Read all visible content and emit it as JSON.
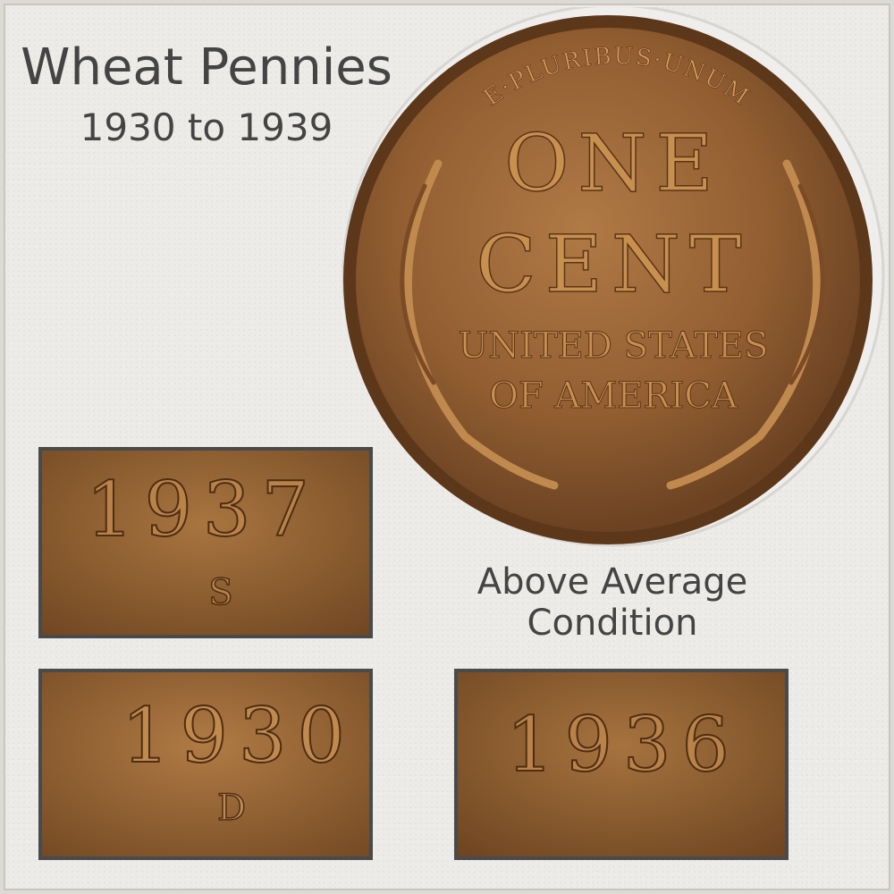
{
  "title": "Wheat Pennies",
  "subtitle": "1930 to 1939",
  "caption": {
    "line1": "Above Average",
    "line2": "Condition"
  },
  "coin": {
    "motto": "E·PLURIBUS·UNUM",
    "line1": "ONE",
    "line2": "CENT",
    "line3": "UNITED STATES",
    "line4": "OF AMERICA"
  },
  "panels": [
    {
      "year": "1937",
      "mint_mark": "S"
    },
    {
      "year": "1930",
      "mint_mark": "D"
    },
    {
      "year": "1936",
      "mint_mark": ""
    }
  ],
  "colors": {
    "copper": "#9c6a3c",
    "copper_dark": "#6e4522",
    "text": "#444444",
    "panel_border": "#4a4a4a"
  }
}
